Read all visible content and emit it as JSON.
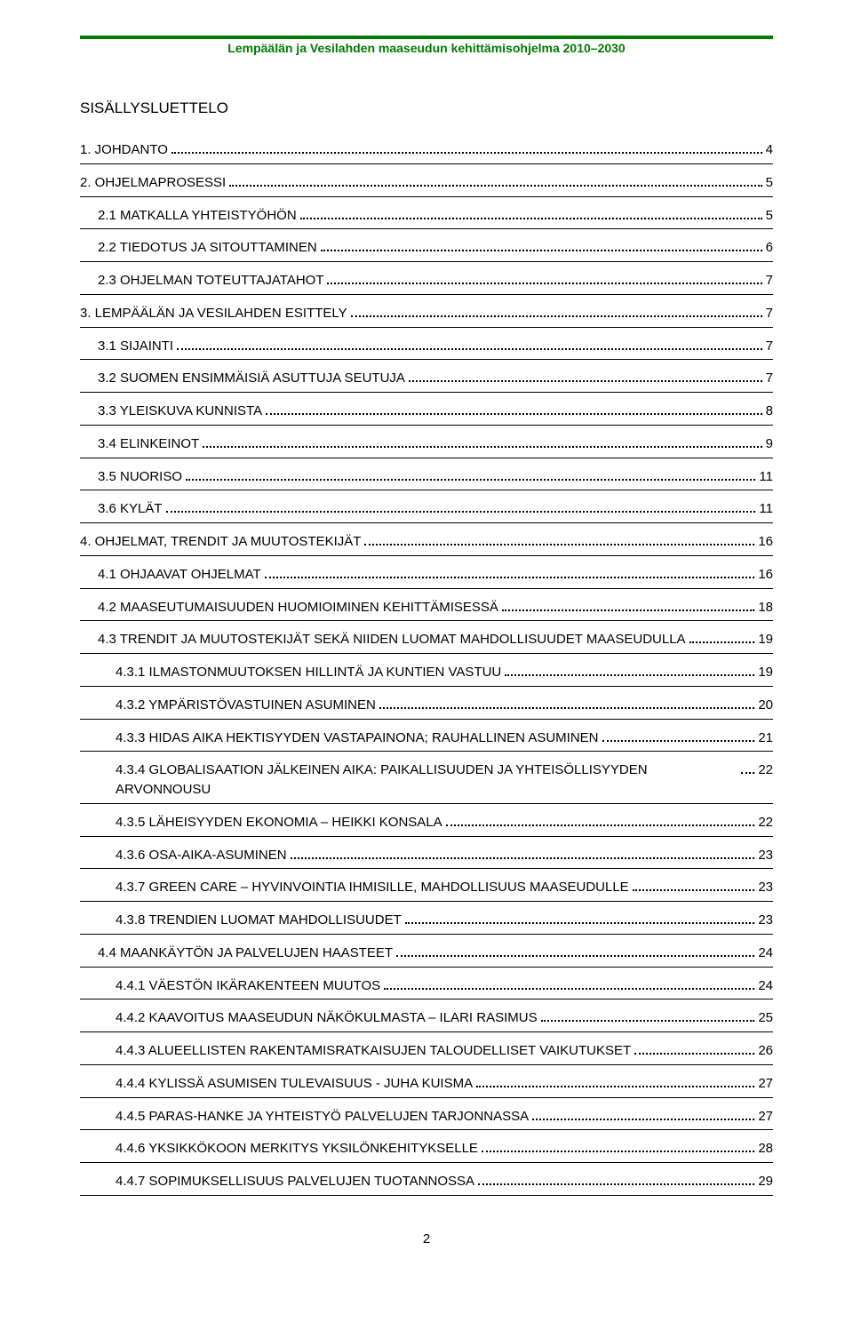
{
  "header": {
    "title": "Lempäälän ja Vesilahden maaseudun kehittämisohjelma 2010–2030",
    "color": "#007a00"
  },
  "toc": {
    "title": "SISÄLLYSLUETTELO",
    "entries": [
      {
        "level": 1,
        "label": "1. JOHDANTO",
        "page": "4"
      },
      {
        "level": 1,
        "label": "2. OHJELMAPROSESSI",
        "page": "5"
      },
      {
        "level": 2,
        "label": "2.1 MATKALLA YHTEISTYÖHÖN",
        "page": "5"
      },
      {
        "level": 2,
        "label": "2.2 TIEDOTUS JA SITOUTTAMINEN",
        "page": "6"
      },
      {
        "level": 2,
        "label": "2.3 OHJELMAN TOTEUTTAJATAHOT",
        "page": "7"
      },
      {
        "level": 1,
        "label": "3. LEMPÄÄLÄN JA VESILAHDEN ESITTELY",
        "page": "7"
      },
      {
        "level": 2,
        "label": "3.1 SIJAINTI",
        "page": "7"
      },
      {
        "level": 2,
        "label": "3.2 SUOMEN ENSIMMÄISIÄ ASUTTUJA SEUTUJA",
        "page": "7"
      },
      {
        "level": 2,
        "label": "3.3 YLEISKUVA KUNNISTA",
        "page": "8"
      },
      {
        "level": 2,
        "label": "3.4 ELINKEINOT",
        "page": "9"
      },
      {
        "level": 2,
        "label": "3.5 NUORISO",
        "page": "11"
      },
      {
        "level": 2,
        "label": "3.6 KYLÄT",
        "page": "11"
      },
      {
        "level": 1,
        "label": "4. OHJELMAT, TRENDIT JA MUUTOSTEKIJÄT",
        "page": "16"
      },
      {
        "level": 2,
        "label": "4.1 OHJAAVAT OHJELMAT",
        "page": "16"
      },
      {
        "level": 2,
        "label": "4.2 MAASEUTUMAISUUDEN HUOMIOIMINEN KEHITTÄMISESSÄ",
        "page": "18"
      },
      {
        "level": 2,
        "label": "4.3 TRENDIT JA MUUTOSTEKIJÄT SEKÄ NIIDEN LUOMAT MAHDOLLISUUDET MAASEUDULLA",
        "page": "19"
      },
      {
        "level": 3,
        "label": "4.3.1 ILMASTONMUUTOKSEN HILLINTÄ JA KUNTIEN VASTUU",
        "page": "19"
      },
      {
        "level": 3,
        "label": "4.3.2 YMPÄRISTÖVASTUINEN ASUMINEN",
        "page": "20"
      },
      {
        "level": 3,
        "label": "4.3.3 HIDAS AIKA HEKTISYYDEN VASTAPAINONA; RAUHALLINEN ASUMINEN",
        "page": "21"
      },
      {
        "level": 3,
        "label": "4.3.4 GLOBALISAATION JÄLKEINEN AIKA: PAIKALLISUUDEN JA YHTEISÖLLISYYDEN ARVONNOUSU",
        "page": "22"
      },
      {
        "level": 3,
        "label": "4.3.5 LÄHEISYYDEN EKONOMIA – HEIKKI KONSALA",
        "page": "22"
      },
      {
        "level": 3,
        "label": "4.3.6 OSA-AIKA-ASUMINEN",
        "page": "23"
      },
      {
        "level": 3,
        "label": "4.3.7 GREEN CARE – HYVINVOINTIA IHMISILLE, MAHDOLLISUUS MAASEUDULLE",
        "page": "23"
      },
      {
        "level": 3,
        "label": "4.3.8 TRENDIEN LUOMAT MAHDOLLISUUDET",
        "page": "23"
      },
      {
        "level": 2,
        "label": "4.4 MAANKÄYTÖN JA PALVELUJEN HAASTEET",
        "page": "24"
      },
      {
        "level": 3,
        "label": "4.4.1 VÄESTÖN IKÄRAKENTEEN MUUTOS",
        "page": "24"
      },
      {
        "level": 3,
        "label": "4.4.2 KAAVOITUS MAASEUDUN NÄKÖKULMASTA – ILARI RASIMUS",
        "page": "25"
      },
      {
        "level": 3,
        "label": "4.4.3 ALUEELLISTEN RAKENTAMISRATKAISUJEN TALOUDELLISET VAIKUTUKSET",
        "page": "26"
      },
      {
        "level": 3,
        "label": "4.4.4 KYLISSÄ ASUMISEN TULEVAISUUS - JUHA KUISMA",
        "page": "27"
      },
      {
        "level": 3,
        "label": "4.4.5 PARAS-HANKE JA YHTEISTYÖ PALVELUJEN TARJONNASSA",
        "page": "27"
      },
      {
        "level": 3,
        "label": "4.4.6 YKSIKKÖKOON MERKITYS YKSILÖNKEHITYKSELLE",
        "page": "28"
      },
      {
        "level": 3,
        "label": "4.4.7 SOPIMUKSELLISUUS PALVELUJEN TUOTANNOSSA",
        "page": "29"
      }
    ]
  },
  "footer": {
    "page_number": "2"
  },
  "styles": {
    "body_font": "Arial",
    "header_color": "#007a00",
    "text_color": "#000000",
    "rule_color": "#000000",
    "header_rule_width": 4,
    "toc_font_size": 15,
    "header_font_size": 14,
    "toc_title_font_size": 17
  }
}
